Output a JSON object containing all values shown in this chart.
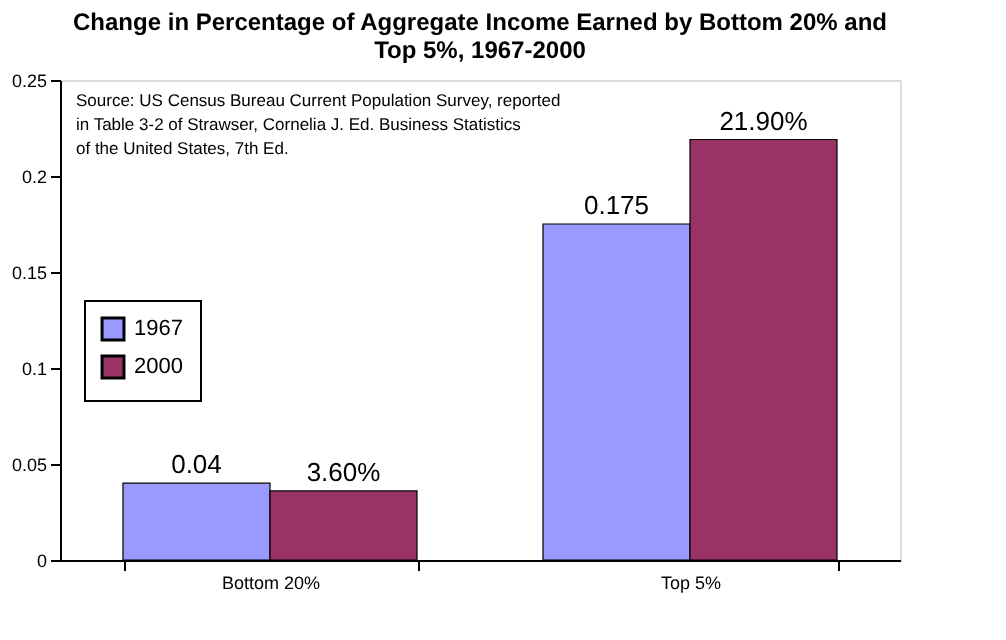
{
  "chart_data": {
    "type": "bar",
    "title": "Change in Percentage of Aggregate Income Earned by Bottom 20% and Top 5%, 1967-2000",
    "categories": [
      "Bottom 20%",
      "Top 5%"
    ],
    "series": [
      {
        "name": "1967",
        "color": "#9999ff",
        "values": [
          0.04,
          0.175
        ],
        "value_labels": [
          "0.04",
          "0.175"
        ]
      },
      {
        "name": "2000",
        "color": "#993366",
        "values": [
          0.036,
          0.219
        ],
        "value_labels": [
          "3.60%",
          "21.90%"
        ]
      }
    ],
    "ylim": [
      0,
      0.25
    ],
    "yticks": [
      0,
      0.05,
      0.1,
      0.15,
      0.2,
      0.25
    ],
    "grid": false,
    "legend": "left",
    "annotations": [
      "Source: US Census Bureau Current Population Survey, reported in Table 3-2 of Strawser, Cornelia J. Ed. Business Statistics of the United States, 7th Ed."
    ]
  }
}
